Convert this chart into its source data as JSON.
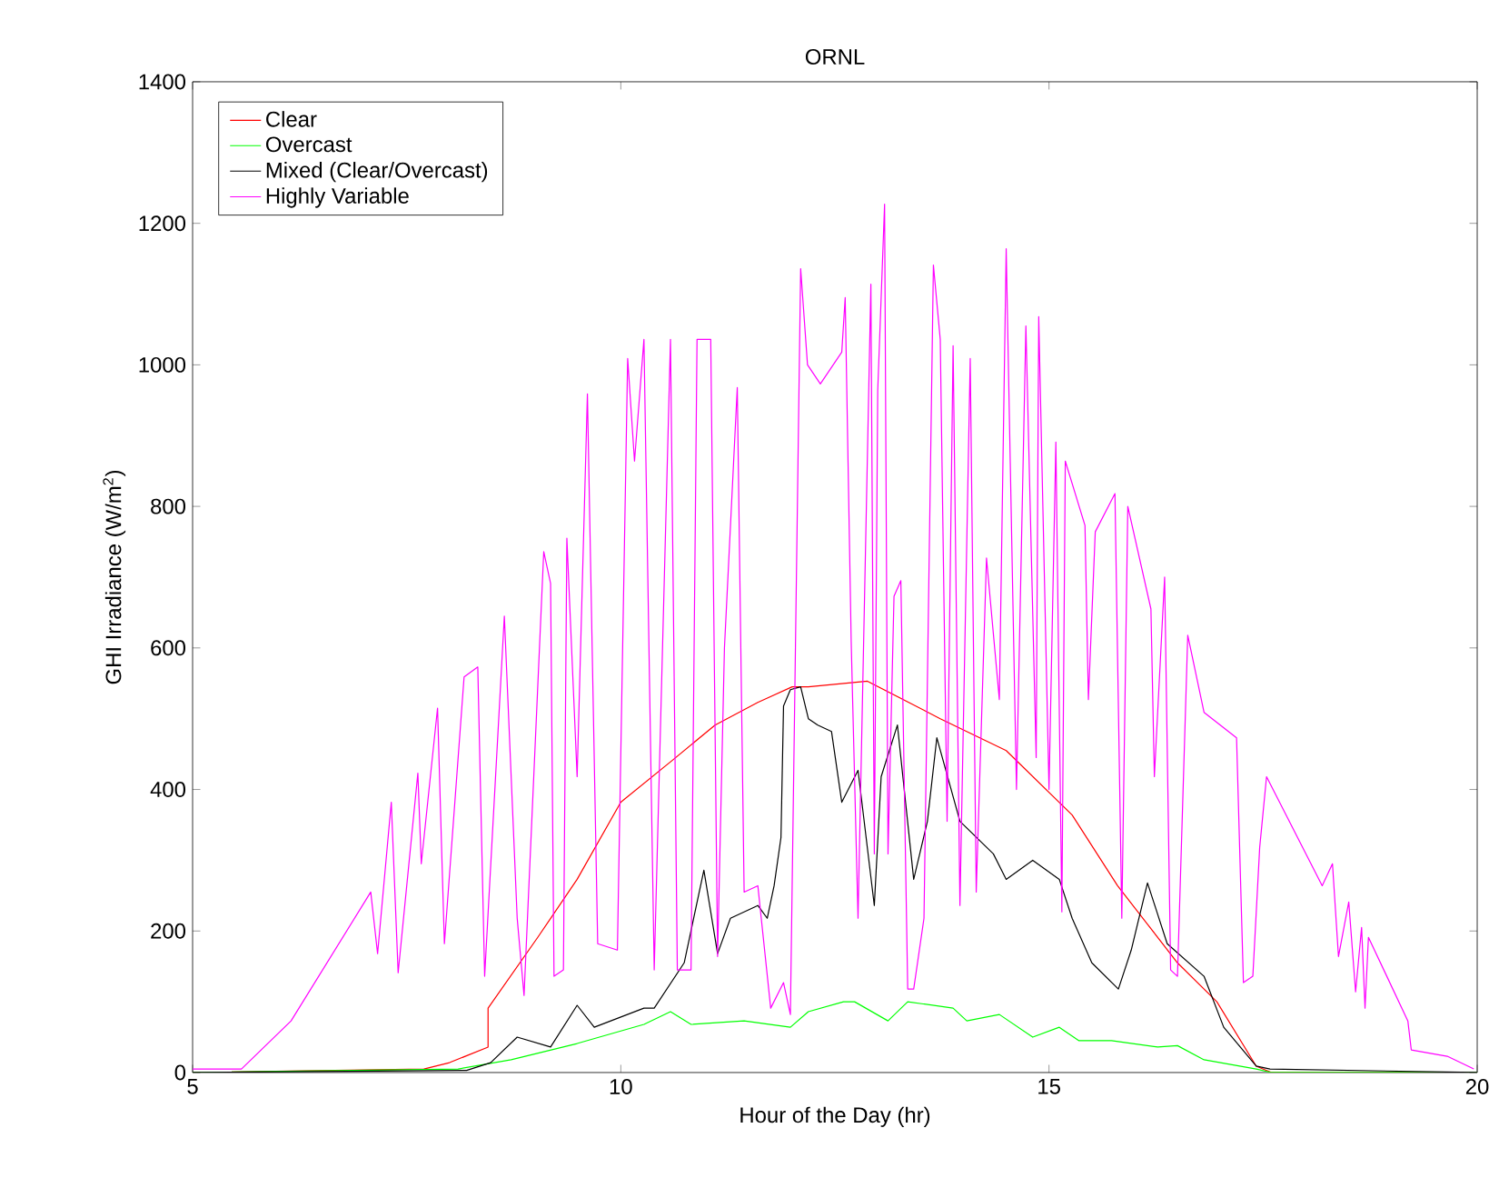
{
  "chart_data": {
    "type": "line",
    "title": "ORNL",
    "xlabel": "Hour of the Day (hr)",
    "ylabel": "GHI Irradiance (W/m$^{2}$)",
    "xlim": [
      5,
      20
    ],
    "ylim": [
      0,
      1400
    ],
    "xticks": [
      5,
      10,
      15,
      20
    ],
    "yticks": [
      0,
      200,
      400,
      600,
      800,
      1000,
      1200,
      1400
    ],
    "legend": "top left",
    "marker": "none",
    "line_style": "solid",
    "series": [
      {
        "name": "Clear",
        "color": "#ff0000",
        "x": [
          5,
          7.7,
          8.0,
          8.45,
          8.45,
          9.03,
          9.49,
          10,
          10.6,
          11.1,
          11.6,
          12.0,
          12.19,
          12.88,
          13.73,
          14.5,
          15.27,
          15.8,
          16.5,
          16.96,
          17.42,
          17.6,
          20
        ],
        "values": [
          0,
          5,
          14,
          36,
          91,
          191,
          273,
          382,
          441,
          491,
          523,
          545,
          545,
          553,
          500,
          455,
          364,
          264,
          155,
          100,
          9,
          0,
          0
        ]
      },
      {
        "name": "Overcast",
        "color": "#00ff00",
        "x": [
          5,
          8.1,
          8.72,
          9.49,
          10.27,
          10.58,
          10.82,
          11.44,
          11.98,
          12.19,
          12.6,
          12.73,
          13.12,
          13.35,
          13.88,
          14.04,
          14.42,
          14.81,
          15.12,
          15.35,
          15.73,
          16.27,
          16.5,
          16.81,
          17.42,
          17.6,
          20
        ],
        "values": [
          0,
          5,
          18,
          41,
          68,
          86,
          68,
          73,
          64,
          86,
          100,
          100,
          73,
          100,
          91,
          73,
          82,
          50,
          64,
          45,
          45,
          36,
          38,
          18,
          5,
          0,
          0
        ]
      },
      {
        "name": "Mixed (Clear/Overcast)",
        "color": "#000000",
        "x": [
          5,
          8.2,
          8.48,
          8.79,
          9.18,
          9.49,
          9.69,
          10.27,
          10.39,
          10.74,
          10.97,
          11.13,
          11.28,
          11.6,
          11.71,
          11.79,
          11.87,
          11.9,
          11.98,
          12.1,
          12.19,
          12.3,
          12.46,
          12.58,
          12.77,
          12.96,
          13.04,
          13.23,
          13.42,
          13.58,
          13.69,
          13.96,
          14.35,
          14.5,
          14.81,
          15.12,
          15.27,
          15.5,
          15.81,
          15.96,
          16.15,
          16.38,
          16.81,
          17.04,
          17.42,
          17.58,
          20
        ],
        "values": [
          0,
          3,
          14,
          50,
          36,
          95,
          64,
          91,
          91,
          155,
          286,
          168,
          218,
          236,
          218,
          264,
          332,
          518,
          541,
          545,
          500,
          491,
          482,
          382,
          427,
          236,
          418,
          491,
          273,
          355,
          473,
          355,
          309,
          273,
          300,
          273,
          218,
          155,
          118,
          173,
          268,
          182,
          136,
          64,
          9,
          5,
          0
        ]
      },
      {
        "name": "Highly Variable",
        "color": "#ff00ff",
        "x": [
          5,
          5.57,
          6.15,
          7.08,
          7.16,
          7.32,
          7.4,
          7.63,
          7.67,
          7.86,
          7.94,
          8.17,
          8.33,
          8.41,
          8.64,
          8.79,
          8.87,
          9.1,
          9.18,
          9.22,
          9.33,
          9.37,
          9.49,
          9.61,
          9.73,
          9.96,
          10.08,
          10.16,
          10.27,
          10.39,
          10.58,
          10.66,
          10.82,
          10.89,
          11.05,
          11.13,
          11.21,
          11.36,
          11.44,
          11.6,
          11.75,
          11.9,
          11.98,
          12.1,
          12.18,
          12.33,
          12.58,
          12.62,
          12.69,
          12.77,
          12.92,
          12.96,
          13.0,
          13.08,
          13.12,
          13.19,
          13.27,
          13.35,
          13.42,
          13.54,
          13.65,
          13.73,
          13.81,
          13.88,
          13.96,
          14.08,
          14.15,
          14.27,
          14.42,
          14.5,
          14.62,
          14.73,
          14.85,
          14.88,
          15.0,
          15.08,
          15.15,
          15.19,
          15.42,
          15.46,
          15.54,
          15.77,
          15.85,
          15.92,
          16.19,
          16.23,
          16.35,
          16.42,
          16.5,
          16.62,
          16.81,
          17.19,
          17.27,
          17.38,
          17.46,
          17.54,
          18.19,
          18.31,
          18.38,
          18.5,
          18.58,
          18.65,
          18.69,
          18.73,
          19.19,
          19.23,
          19.65,
          19.96
        ],
        "values": [
          5,
          5,
          73,
          255,
          168,
          382,
          141,
          423,
          295,
          515,
          182,
          559,
          573,
          136,
          645,
          218,
          109,
          736,
          691,
          136,
          145,
          755,
          418,
          959,
          182,
          173,
          1009,
          864,
          1036,
          145,
          1036,
          145,
          145,
          1036,
          1036,
          164,
          600,
          968,
          255,
          264,
          91,
          127,
          82,
          1136,
          1000,
          973,
          1018,
          1095,
          609,
          218,
          1114,
          309,
          964,
          1227,
          309,
          673,
          695,
          118,
          118,
          218,
          1141,
          1036,
          355,
          1027,
          236,
          1009,
          255,
          727,
          527,
          1164,
          400,
          1055,
          445,
          1068,
          400,
          891,
          227,
          864,
          773,
          527,
          764,
          818,
          218,
          800,
          655,
          418,
          700,
          145,
          136,
          618,
          509,
          473,
          127,
          136,
          318,
          418,
          264,
          295,
          164,
          241,
          114,
          205,
          91,
          191,
          73,
          32,
          23,
          5
        ]
      }
    ]
  }
}
